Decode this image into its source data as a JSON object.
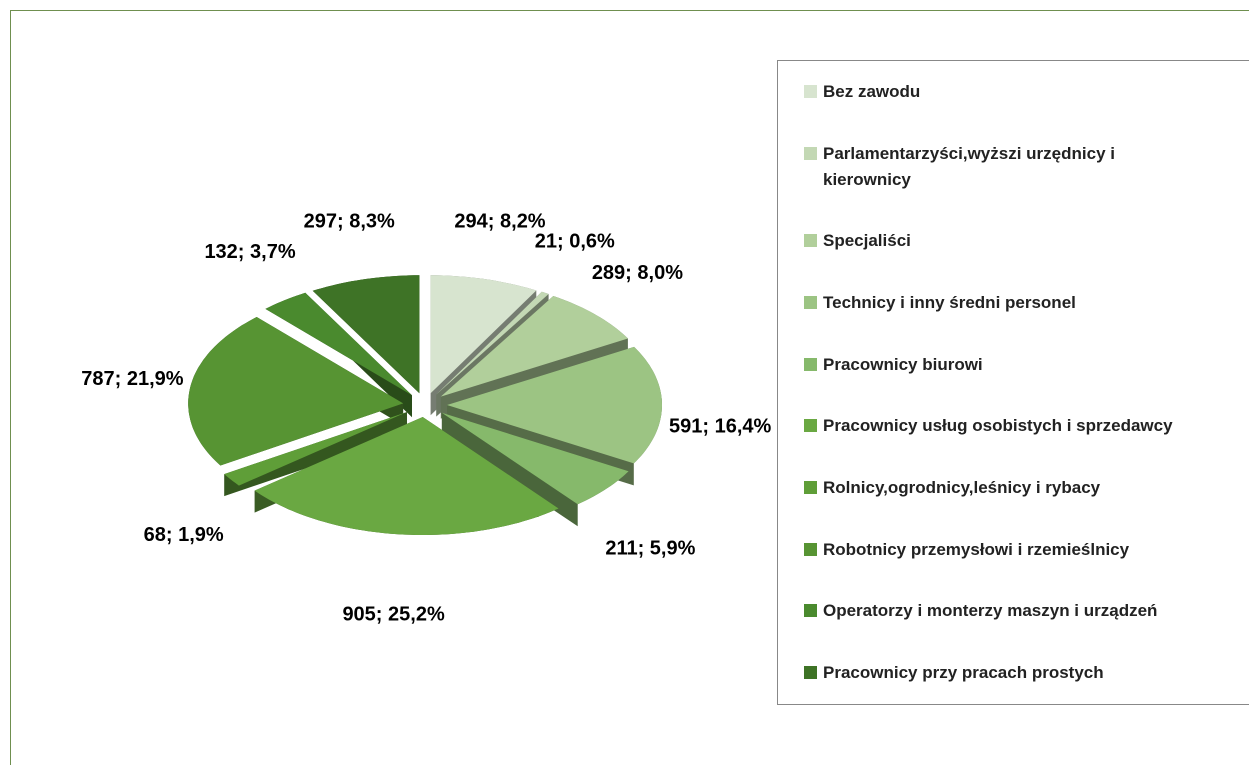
{
  "chart_data": {
    "type": "pie",
    "categories": [
      "Bez zawodu",
      "Parlamentarzyści,wyższi urzędnicy i kierownicy",
      "Specjaliści",
      "Technicy i inny średni personel",
      "Pracownicy biurowi",
      "Pracownicy usług osobistych i sprzedawcy",
      "Rolnicy,ogrodnicy,leśnicy i rybacy",
      "Robotnicy przemysłowi i rzemieślnicy",
      "Operatorzy i monterzy maszyn i urządzeń",
      "Pracownicy przy pracach prostych"
    ],
    "values": [
      294,
      21,
      289,
      591,
      211,
      905,
      68,
      787,
      132,
      297
    ],
    "value_labels": [
      "294; 8,2%",
      "21; 0,6%",
      "289; 8,0%",
      "591; 16,4%",
      "211; 5,9%",
      "905; 25,2%",
      "68; 1,9%",
      "787; 21,9%",
      "132; 3,7%",
      "297; 8,3%"
    ],
    "colors": [
      "#d7e4cf",
      "#c3d8b4",
      "#b1cf9b",
      "#9cc483",
      "#86b96b",
      "#6aa842",
      "#5f9e38",
      "#579433",
      "#4a8a2e",
      "#3e7326"
    ],
    "legend": "right"
  }
}
